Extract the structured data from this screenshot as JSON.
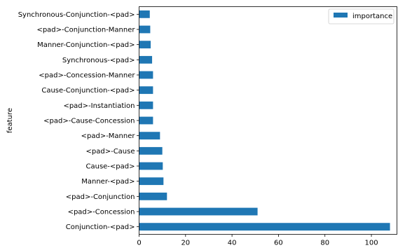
{
  "chart_data": {
    "type": "bar",
    "orientation": "horizontal",
    "categories": [
      "Conjunction-<pad>",
      "<pad>-Concession",
      "<pad>-Conjunction",
      "Manner-<pad>",
      "Cause-<pad>",
      "<pad>-Cause",
      "<pad>-Manner",
      "<pad>-Cause-Concession",
      "<pad>-Instantiation",
      "Cause-Conjunction-<pad>",
      "<pad>-Concession-Manner",
      "Synchronous-<pad>",
      "Manner-Conjunction-<pad>",
      "<pad>-Conjunction-Manner",
      "Synchronous-Conjunction-<pad>"
    ],
    "series": [
      {
        "name": "importance",
        "color": "#1f77b4",
        "values": [
          108,
          51,
          12,
          10.5,
          10.2,
          10,
          9,
          6,
          6,
          6,
          6,
          5.6,
          5,
          4.8,
          4.6
        ]
      }
    ],
    "xlabel": "",
    "ylabel": "feature",
    "xlim": [
      0,
      111
    ],
    "xticks": [
      0,
      20,
      40,
      60,
      80,
      100
    ],
    "grid": false,
    "legend_position": "top-right"
  }
}
